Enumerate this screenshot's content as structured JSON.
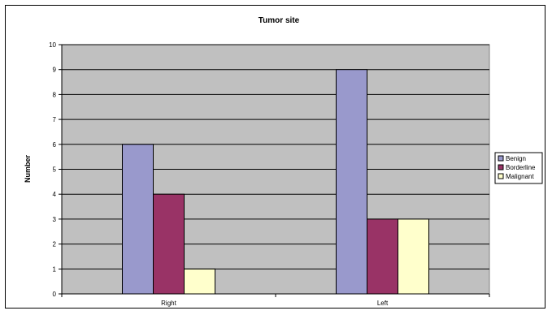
{
  "chart_data": {
    "type": "bar",
    "title": "Tumor site",
    "xlabel": "",
    "ylabel": "Number",
    "categories": [
      "Right",
      "Left"
    ],
    "series": [
      {
        "name": "Benign",
        "values": [
          6,
          9
        ],
        "color": "#9999cc"
      },
      {
        "name": "Borderline",
        "values": [
          4,
          3
        ],
        "color": "#993366"
      },
      {
        "name": "Malignant",
        "values": [
          1,
          3
        ],
        "color": "#ffffcc"
      }
    ],
    "ylim": [
      0,
      10
    ],
    "yticks": [
      0,
      1,
      2,
      3,
      4,
      5,
      6,
      7,
      8,
      9,
      10
    ],
    "grid": true,
    "legend_position": "right",
    "plot_background": "#c0c0c0"
  }
}
